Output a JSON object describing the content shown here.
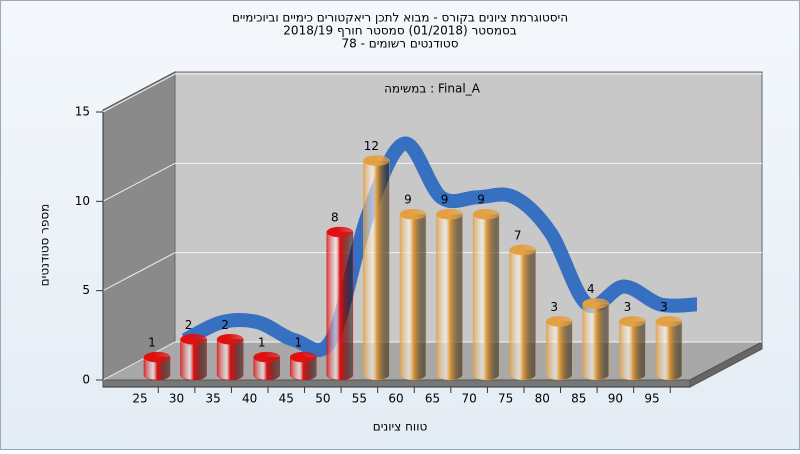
{
  "chart_data": {
    "type": "bar3d",
    "title": "היסטוגרמת ציונים בקורס - מבוא לתכן ריאקטורים כימיים וביוכימיים",
    "subtitle": "בסמסטר  (01/2018)  סמסטר חורף  2018/19",
    "subtitle2": "סטודנטים רשומים - 78",
    "annotation": "Final_A : במשימה",
    "x_label": "טווח ציונים",
    "y_label": "מספר סטודנטים",
    "categories": [
      "25",
      "30",
      "35",
      "40",
      "45",
      "50",
      "55",
      "60",
      "65",
      "70",
      "75",
      "80",
      "85",
      "90",
      "95"
    ],
    "values": [
      1,
      2,
      2,
      1,
      1,
      8,
      12,
      9,
      9,
      9,
      7,
      3,
      4,
      3,
      3
    ],
    "bar_colors": [
      "#e01010",
      "#e01010",
      "#e01010",
      "#e01010",
      "#e01010",
      "#e01010",
      "#e4a040",
      "#e4a040",
      "#e4a040",
      "#e4a040",
      "#e4a040",
      "#e4a040",
      "#e4a040",
      "#e4a040",
      "#e4a040"
    ],
    "trend_line": true,
    "trend_color": "#2f6cc0",
    "ylim": [
      0,
      15
    ],
    "yticks": [
      0,
      5,
      10,
      15
    ],
    "grid": true
  }
}
